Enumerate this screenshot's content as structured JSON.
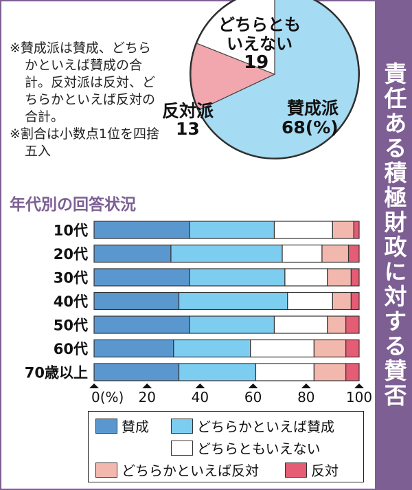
{
  "side_title": "責任ある積極財政に対する賛否",
  "notes": [
    "※賛成派は賛成、どちらかといえば賛成の合計。反対派は反対、どちらかといえば反対の合計。",
    "※割合は小数点1位を四捨五入"
  ],
  "pie_labels": {
    "neutral_1": "どちらとも",
    "neutral_2": "いえない",
    "neutral_val": "19",
    "oppose": "反対派",
    "oppose_val": "13",
    "support": "賛成派",
    "support_val": "68(%)"
  },
  "subtitle": "年代別の回答状況",
  "colors": [
    "#5b97cf",
    "#7dcdf0",
    "#ffffff",
    "#f2b7ad",
    "#e45d75"
  ],
  "chart_data": [
    {
      "type": "pie",
      "slices": [
        {
          "label": "賛成派",
          "value": 68,
          "color": "#a6dcf3"
        },
        {
          "label": "反対派",
          "value": 13,
          "color": "#f1a7ad"
        },
        {
          "label": "どちらともいえない",
          "value": 19,
          "color": "#ffffff"
        }
      ],
      "unit": "%"
    },
    {
      "type": "bar",
      "orientation": "horizontal",
      "stacked": true,
      "title": "年代別の回答状況",
      "categories": [
        "10代",
        "20代",
        "30代",
        "40代",
        "50代",
        "60代",
        "70歳以上"
      ],
      "series": [
        {
          "name": "賛成",
          "values": [
            36,
            29,
            36,
            32,
            36,
            30,
            32
          ]
        },
        {
          "name": "どちらかといえば賛成",
          "values": [
            32,
            42,
            36,
            41,
            32,
            29,
            29
          ]
        },
        {
          "name": "どちらともいえない",
          "values": [
            22,
            15,
            16,
            17,
            20,
            24,
            22
          ]
        },
        {
          "name": "どちらかといえば反対",
          "values": [
            8,
            10,
            9,
            7,
            7,
            12,
            12
          ]
        },
        {
          "name": "反対",
          "values": [
            2,
            4,
            3,
            3,
            5,
            5,
            5
          ]
        }
      ],
      "xlim": [
        0,
        100
      ],
      "xticks": [
        "0(%)",
        "20",
        "40",
        "60",
        "80",
        "100"
      ],
      "legend": "bottom"
    }
  ]
}
